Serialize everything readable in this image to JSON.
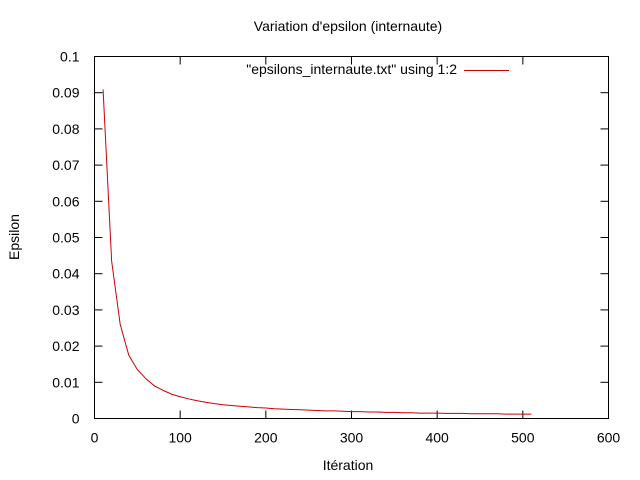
{
  "chart_data": {
    "type": "line",
    "title": "Variation d'epsilon (internaute)",
    "xlabel": "Itération",
    "ylabel": "Epsilon",
    "xlim": [
      0,
      600
    ],
    "ylim": [
      0,
      0.1
    ],
    "x_ticks": [
      0,
      100,
      200,
      300,
      400,
      500,
      600
    ],
    "y_ticks": [
      0,
      0.01,
      0.02,
      0.03,
      0.04,
      0.05,
      0.06,
      0.07,
      0.08,
      0.09,
      0.1
    ],
    "x_tick_labels": [
      "0",
      "100",
      "200",
      "300",
      "400",
      "500",
      "600"
    ],
    "y_tick_labels": [
      "0",
      "0.01",
      "0.02",
      "0.03",
      "0.04",
      "0.05",
      "0.06",
      "0.07",
      "0.08",
      "0.09",
      "0.1"
    ],
    "grid": false,
    "legend_position": "top-right",
    "series": [
      {
        "name": "\"epsilons_internaute.txt\" using 1:2",
        "color": "#cc0000",
        "x": [
          10,
          20,
          30,
          40,
          50,
          60,
          70,
          80,
          90,
          100,
          110,
          120,
          130,
          140,
          150,
          160,
          170,
          180,
          190,
          200,
          210,
          220,
          230,
          240,
          250,
          260,
          270,
          280,
          290,
          300,
          310,
          320,
          330,
          340,
          350,
          360,
          370,
          380,
          390,
          400,
          410,
          420,
          430,
          440,
          450,
          460,
          470,
          480,
          490,
          500,
          510
        ],
        "y": [
          0.0909,
          0.0435,
          0.026,
          0.0175,
          0.0135,
          0.011,
          0.009,
          0.0078,
          0.0067,
          0.006,
          0.0054,
          0.0049,
          0.0045,
          0.0041,
          0.0038,
          0.0036,
          0.0034,
          0.0032,
          0.003,
          0.0029,
          0.0027,
          0.0026,
          0.0025,
          0.0024,
          0.0023,
          0.0022,
          0.0021,
          0.0021,
          0.002,
          0.0019,
          0.0019,
          0.0018,
          0.0018,
          0.0017,
          0.0017,
          0.0016,
          0.0016,
          0.0015,
          0.0015,
          0.0015,
          0.0014,
          0.0014,
          0.0014,
          0.0013,
          0.0013,
          0.0013,
          0.0013,
          0.0012,
          0.0012,
          0.0012,
          0.0012
        ]
      }
    ]
  }
}
